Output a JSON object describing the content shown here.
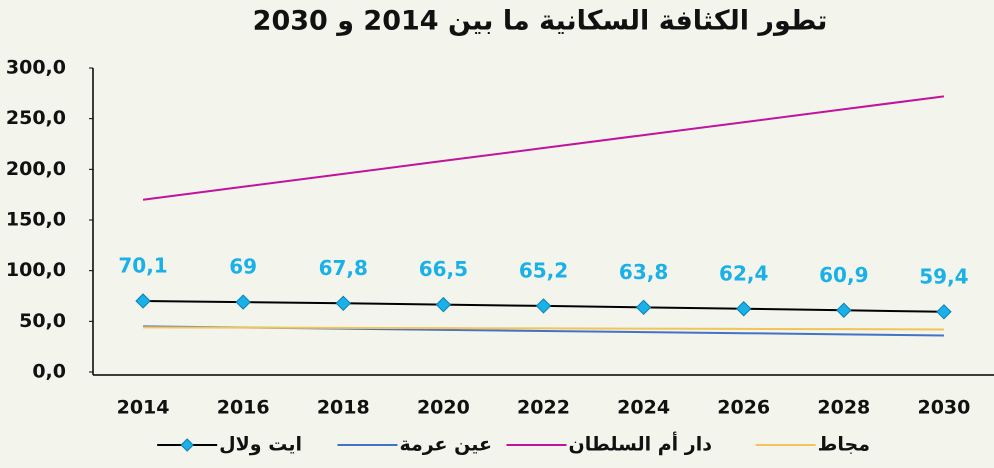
{
  "chart_data": {
    "type": "line",
    "title": "تطور الكثافة السكانية ما بين 2014 و 2030",
    "categories": [
      "2014",
      "2016",
      "2018",
      "2020",
      "2022",
      "2024",
      "2026",
      "2028",
      "2030"
    ],
    "series": [
      {
        "name": "ايت ولال",
        "color": "#000000",
        "marker_color": "#1ab0e8",
        "values": [
          70.1,
          69,
          67.8,
          66.5,
          65.2,
          63.8,
          62.4,
          60.9,
          59.4
        ],
        "value_labels": [
          "70,1",
          "69",
          "67,8",
          "66,5",
          "65,2",
          "63,8",
          "62,4",
          "60,9",
          "59,4"
        ]
      },
      {
        "name": "عين عرمة",
        "color": "#4472c4",
        "values": [
          45,
          43.9,
          42.8,
          41.6,
          40.5,
          39.4,
          38.3,
          37.1,
          36
        ]
      },
      {
        "name": "دار أم السلطان",
        "color": "#c0149c",
        "values": [
          170,
          182.8,
          195.5,
          208.3,
          221,
          233.8,
          246.5,
          259.3,
          272
        ]
      },
      {
        "name": "مجاط",
        "color": "#f2c45a",
        "values": [
          44,
          43.8,
          43.5,
          43.3,
          43,
          42.8,
          42.5,
          42.3,
          42
        ]
      }
    ],
    "ylim": [
      0,
      300
    ],
    "yticks": [
      {
        "value": 0,
        "label": "0,0"
      },
      {
        "value": 50,
        "label": "50,0"
      },
      {
        "value": 100,
        "label": "100,0"
      },
      {
        "value": 150,
        "label": "150,0"
      },
      {
        "value": 200,
        "label": "200,0"
      },
      {
        "value": 250,
        "label": "250,0"
      },
      {
        "value": 300,
        "label": "300,0"
      }
    ],
    "grid": false
  }
}
